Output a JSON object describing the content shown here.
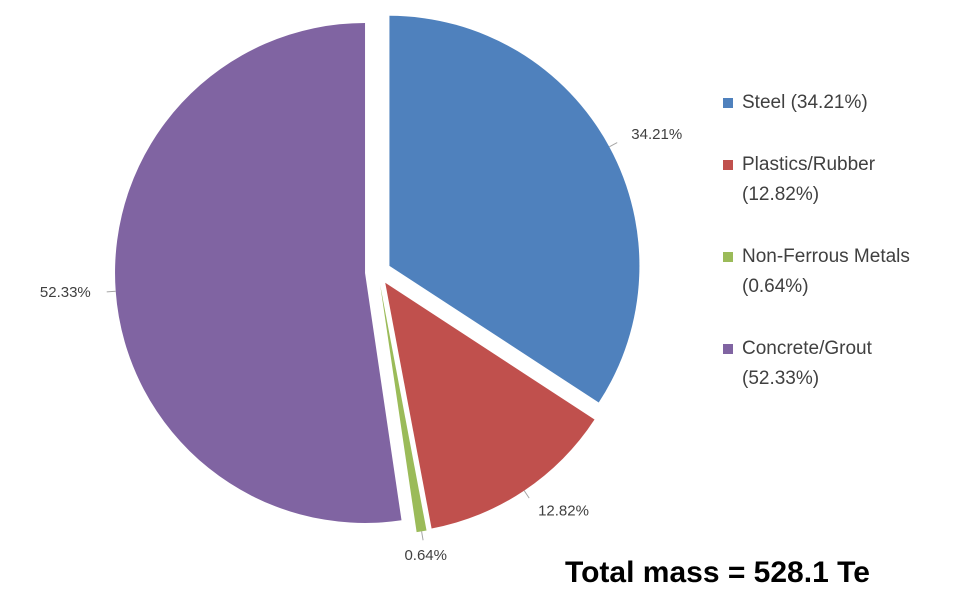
{
  "chart_data": {
    "type": "pie",
    "categories": [
      "Steel (34.21%)",
      "Plastics/Rubber (12.82%)",
      "Non-Ferrous Metals (0.64%)",
      "Concrete/Grout (52.33%)"
    ],
    "values": [
      34.21,
      12.82,
      0.64,
      52.33
    ],
    "value_labels": [
      "34.21%",
      "12.82%",
      "0.64%",
      "52.33%"
    ],
    "colors": [
      "#4f81bd",
      "#c0504d",
      "#9bbb59",
      "#8064a2"
    ],
    "legend": "right",
    "annotation": "Total mass = 528.1 Te"
  }
}
